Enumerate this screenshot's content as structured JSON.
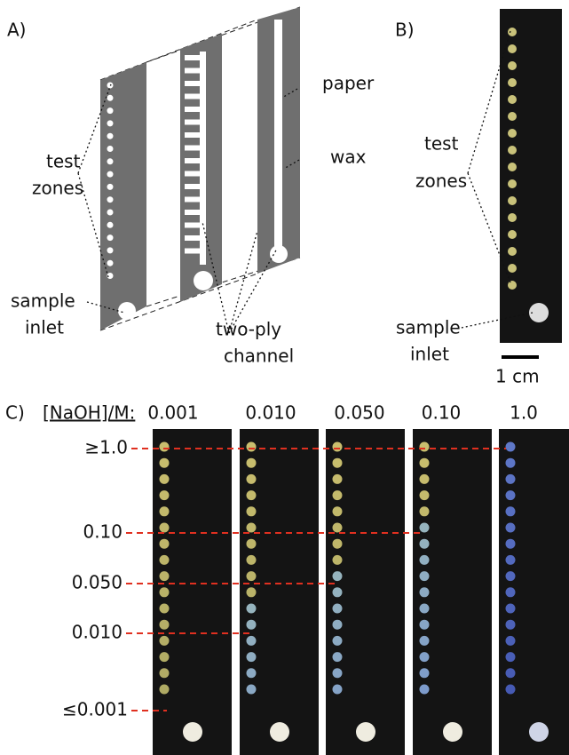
{
  "panel_a": {
    "label": "A)",
    "test_zones": [
      "test",
      "zones"
    ],
    "sample_inlet": [
      "sample",
      "inlet"
    ],
    "paper": "paper",
    "wax": "wax",
    "two_ply_channel": [
      "two-ply",
      "channel"
    ]
  },
  "panel_b": {
    "label": "B)",
    "test_zones": [
      "test",
      "zones"
    ],
    "sample_inlet": [
      "sample",
      "inlet"
    ],
    "scale_bar": "1 cm"
  },
  "panel_c": {
    "label": "C)",
    "header": "[NaOH]/M:",
    "columns": [
      "0.001",
      "0.010",
      "0.050",
      "0.10",
      "1.0"
    ],
    "levels": [
      "≥1.0",
      "0.10",
      "0.050",
      "0.010",
      "≤0.001"
    ]
  }
}
